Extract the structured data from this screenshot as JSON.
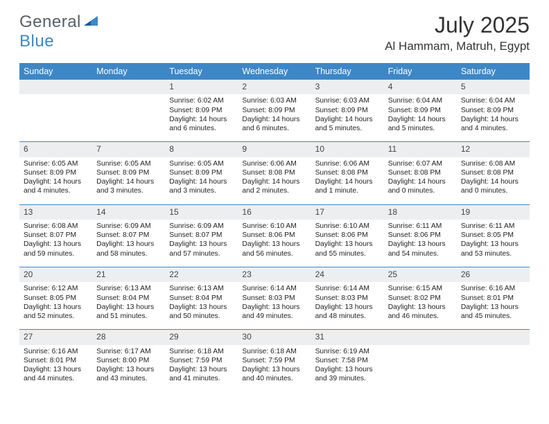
{
  "brand": {
    "word1": "General",
    "word2": "Blue"
  },
  "title": "July 2025",
  "location": "Al Hammam, Matruh, Egypt",
  "colors": {
    "header_bg": "#3d87c7",
    "header_text": "#ffffff",
    "daynum_bg": "#eceeef",
    "border": "#3d87c7",
    "text": "#222222",
    "logo_gray": "#555f66",
    "logo_blue": "#3d87c7"
  },
  "day_names": [
    "Sunday",
    "Monday",
    "Tuesday",
    "Wednesday",
    "Thursday",
    "Friday",
    "Saturday"
  ],
  "weeks": [
    [
      null,
      null,
      {
        "n": "1",
        "sunrise": "6:02 AM",
        "sunset": "8:09 PM",
        "daylight": "14 hours and 6 minutes."
      },
      {
        "n": "2",
        "sunrise": "6:03 AM",
        "sunset": "8:09 PM",
        "daylight": "14 hours and 6 minutes."
      },
      {
        "n": "3",
        "sunrise": "6:03 AM",
        "sunset": "8:09 PM",
        "daylight": "14 hours and 5 minutes."
      },
      {
        "n": "4",
        "sunrise": "6:04 AM",
        "sunset": "8:09 PM",
        "daylight": "14 hours and 5 minutes."
      },
      {
        "n": "5",
        "sunrise": "6:04 AM",
        "sunset": "8:09 PM",
        "daylight": "14 hours and 4 minutes."
      }
    ],
    [
      {
        "n": "6",
        "sunrise": "6:05 AM",
        "sunset": "8:09 PM",
        "daylight": "14 hours and 4 minutes."
      },
      {
        "n": "7",
        "sunrise": "6:05 AM",
        "sunset": "8:09 PM",
        "daylight": "14 hours and 3 minutes."
      },
      {
        "n": "8",
        "sunrise": "6:05 AM",
        "sunset": "8:09 PM",
        "daylight": "14 hours and 3 minutes."
      },
      {
        "n": "9",
        "sunrise": "6:06 AM",
        "sunset": "8:08 PM",
        "daylight": "14 hours and 2 minutes."
      },
      {
        "n": "10",
        "sunrise": "6:06 AM",
        "sunset": "8:08 PM",
        "daylight": "14 hours and 1 minute."
      },
      {
        "n": "11",
        "sunrise": "6:07 AM",
        "sunset": "8:08 PM",
        "daylight": "14 hours and 0 minutes."
      },
      {
        "n": "12",
        "sunrise": "6:08 AM",
        "sunset": "8:08 PM",
        "daylight": "14 hours and 0 minutes."
      }
    ],
    [
      {
        "n": "13",
        "sunrise": "6:08 AM",
        "sunset": "8:07 PM",
        "daylight": "13 hours and 59 minutes."
      },
      {
        "n": "14",
        "sunrise": "6:09 AM",
        "sunset": "8:07 PM",
        "daylight": "13 hours and 58 minutes."
      },
      {
        "n": "15",
        "sunrise": "6:09 AM",
        "sunset": "8:07 PM",
        "daylight": "13 hours and 57 minutes."
      },
      {
        "n": "16",
        "sunrise": "6:10 AM",
        "sunset": "8:06 PM",
        "daylight": "13 hours and 56 minutes."
      },
      {
        "n": "17",
        "sunrise": "6:10 AM",
        "sunset": "8:06 PM",
        "daylight": "13 hours and 55 minutes."
      },
      {
        "n": "18",
        "sunrise": "6:11 AM",
        "sunset": "8:06 PM",
        "daylight": "13 hours and 54 minutes."
      },
      {
        "n": "19",
        "sunrise": "6:11 AM",
        "sunset": "8:05 PM",
        "daylight": "13 hours and 53 minutes."
      }
    ],
    [
      {
        "n": "20",
        "sunrise": "6:12 AM",
        "sunset": "8:05 PM",
        "daylight": "13 hours and 52 minutes."
      },
      {
        "n": "21",
        "sunrise": "6:13 AM",
        "sunset": "8:04 PM",
        "daylight": "13 hours and 51 minutes."
      },
      {
        "n": "22",
        "sunrise": "6:13 AM",
        "sunset": "8:04 PM",
        "daylight": "13 hours and 50 minutes."
      },
      {
        "n": "23",
        "sunrise": "6:14 AM",
        "sunset": "8:03 PM",
        "daylight": "13 hours and 49 minutes."
      },
      {
        "n": "24",
        "sunrise": "6:14 AM",
        "sunset": "8:03 PM",
        "daylight": "13 hours and 48 minutes."
      },
      {
        "n": "25",
        "sunrise": "6:15 AM",
        "sunset": "8:02 PM",
        "daylight": "13 hours and 46 minutes."
      },
      {
        "n": "26",
        "sunrise": "6:16 AM",
        "sunset": "8:01 PM",
        "daylight": "13 hours and 45 minutes."
      }
    ],
    [
      {
        "n": "27",
        "sunrise": "6:16 AM",
        "sunset": "8:01 PM",
        "daylight": "13 hours and 44 minutes."
      },
      {
        "n": "28",
        "sunrise": "6:17 AM",
        "sunset": "8:00 PM",
        "daylight": "13 hours and 43 minutes."
      },
      {
        "n": "29",
        "sunrise": "6:18 AM",
        "sunset": "7:59 PM",
        "daylight": "13 hours and 41 minutes."
      },
      {
        "n": "30",
        "sunrise": "6:18 AM",
        "sunset": "7:59 PM",
        "daylight": "13 hours and 40 minutes."
      },
      {
        "n": "31",
        "sunrise": "6:19 AM",
        "sunset": "7:58 PM",
        "daylight": "13 hours and 39 minutes."
      },
      null,
      null
    ]
  ],
  "labels": {
    "sunrise": "Sunrise:",
    "sunset": "Sunset:",
    "daylight": "Daylight:"
  }
}
